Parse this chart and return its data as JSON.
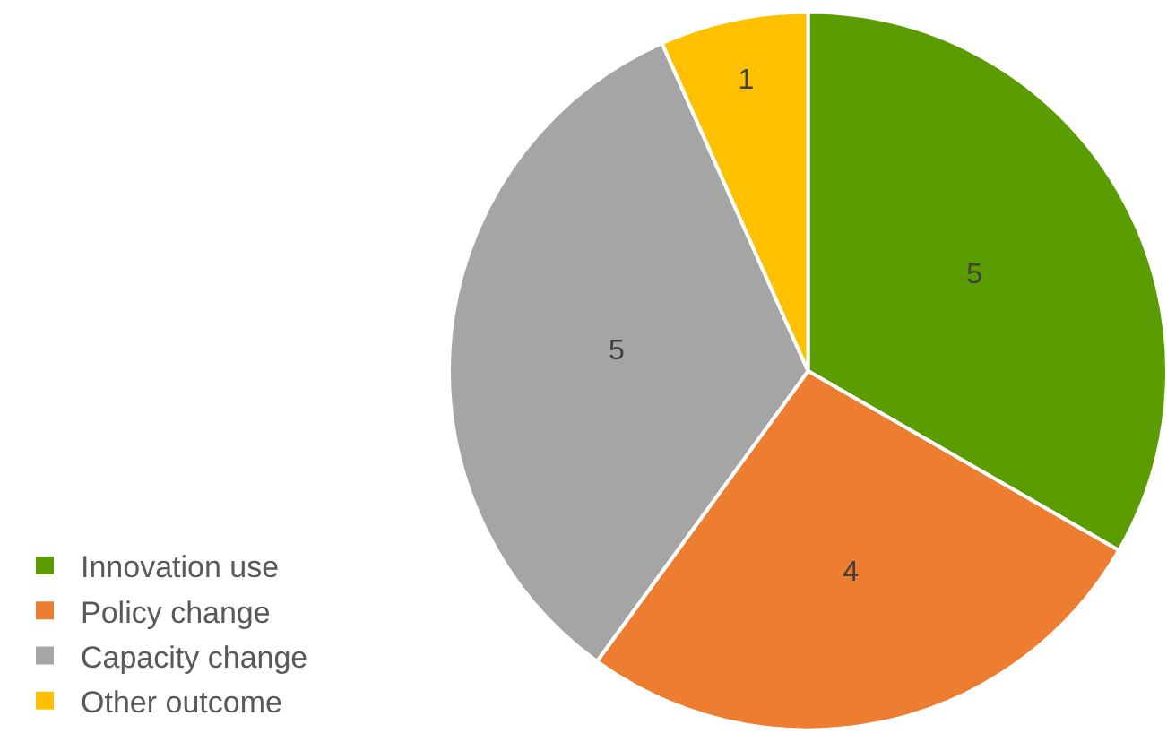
{
  "chart_data": {
    "type": "pie",
    "categories": [
      "Innovation use",
      "Policy change",
      "Capacity change",
      "Other outcome"
    ],
    "values": [
      5,
      4,
      5,
      1
    ],
    "colors": [
      "#5b9c00",
      "#ed7d31",
      "#a5a5a5",
      "#ffc000"
    ],
    "data_labels": true,
    "legend": "left"
  }
}
